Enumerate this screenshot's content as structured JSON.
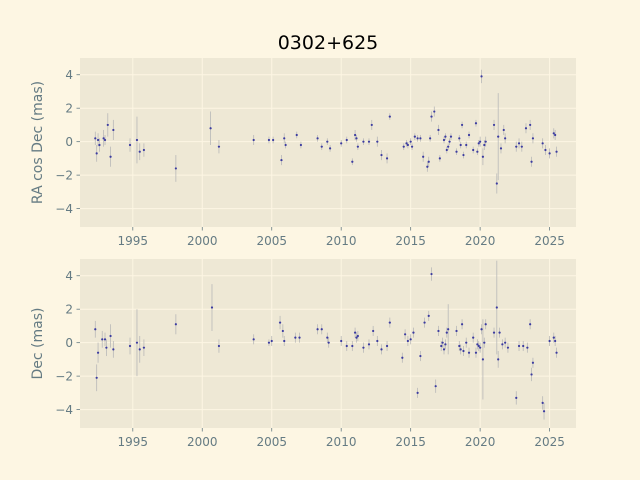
{
  "colors": {
    "figure_bg": "#fdf6e3",
    "axes_bg": "#eee8d5",
    "grid": "#fdf6e3",
    "tick_text": "#657b83",
    "points": "#3b3ba0",
    "errorbars": "#b8b8b8",
    "title": "#000000"
  },
  "chart_data": [
    {
      "type": "scatter",
      "title": "0302+625",
      "xlabel": "",
      "ylabel": "RA cos Dec (mas)",
      "xlim": [
        1991.2,
        2026.9
      ],
      "ylim": [
        -5.1,
        5.0
      ],
      "xticks": [
        1995,
        2000,
        2005,
        2010,
        2015,
        2020,
        2025
      ],
      "yticks": [
        -4,
        -2,
        0,
        2,
        4
      ],
      "grid": true,
      "series": [
        {
          "points": [
            [
              1992.3,
              0.2,
              0.4
            ],
            [
              1992.4,
              -0.7,
              0.5
            ],
            [
              1992.5,
              0.1,
              0.4
            ],
            [
              1992.6,
              -0.2,
              0.4
            ],
            [
              1992.9,
              0.2,
              0.5
            ],
            [
              1993.0,
              0.1,
              0.3
            ],
            [
              1993.2,
              1.0,
              0.7
            ],
            [
              1993.4,
              -0.9,
              0.6
            ],
            [
              1993.6,
              0.7,
              0.6
            ],
            [
              1994.8,
              -0.2,
              0.4
            ],
            [
              1995.3,
              0.1,
              1.4
            ],
            [
              1995.5,
              -0.6,
              0.5
            ],
            [
              1995.8,
              -0.5,
              0.4
            ],
            [
              1998.1,
              -1.6,
              0.8
            ],
            [
              2000.6,
              0.8,
              1.0
            ],
            [
              2001.2,
              -0.3,
              0.4
            ],
            [
              2003.7,
              0.1,
              0.3
            ],
            [
              2004.8,
              0.1,
              0.2
            ],
            [
              2005.1,
              0.1,
              0.2
            ],
            [
              2005.7,
              -1.1,
              0.3
            ],
            [
              2005.9,
              0.2,
              0.3
            ],
            [
              2006.0,
              -0.2,
              0.2
            ],
            [
              2006.8,
              0.4,
              0.2
            ],
            [
              2007.1,
              -0.2,
              0.2
            ],
            [
              2008.3,
              0.2,
              0.2
            ],
            [
              2008.6,
              -0.3,
              0.2
            ],
            [
              2009.0,
              0.0,
              0.2
            ],
            [
              2009.2,
              -0.4,
              0.2
            ],
            [
              2010.0,
              -0.1,
              0.2
            ],
            [
              2010.4,
              0.1,
              0.2
            ],
            [
              2010.8,
              -1.2,
              0.2
            ],
            [
              2011.0,
              0.4,
              0.3
            ],
            [
              2011.1,
              0.2,
              0.2
            ],
            [
              2011.2,
              -0.3,
              0.2
            ],
            [
              2011.6,
              0.0,
              0.2
            ],
            [
              2012.0,
              0.0,
              0.2
            ],
            [
              2012.2,
              1.0,
              0.3
            ],
            [
              2012.6,
              0.0,
              0.3
            ],
            [
              2012.9,
              -0.8,
              0.3
            ],
            [
              2013.3,
              -1.0,
              0.3
            ],
            [
              2013.5,
              1.5,
              0.2
            ],
            [
              2014.5,
              -0.3,
              0.2
            ],
            [
              2014.7,
              -0.1,
              0.2
            ],
            [
              2014.8,
              -0.2,
              0.2
            ],
            [
              2015.0,
              0.0,
              0.2
            ],
            [
              2015.1,
              -0.3,
              0.2
            ],
            [
              2015.3,
              0.3,
              0.2
            ],
            [
              2015.5,
              0.2,
              0.2
            ],
            [
              2015.7,
              0.2,
              0.2
            ],
            [
              2015.9,
              -0.9,
              0.3
            ],
            [
              2016.2,
              -1.5,
              0.3
            ],
            [
              2016.3,
              -1.2,
              0.3
            ],
            [
              2016.4,
              0.2,
              0.2
            ],
            [
              2016.5,
              1.5,
              0.3
            ],
            [
              2016.7,
              1.8,
              0.3
            ],
            [
              2017.0,
              0.7,
              0.3
            ],
            [
              2017.1,
              -1.0,
              0.2
            ],
            [
              2017.4,
              0.1,
              0.2
            ],
            [
              2017.5,
              0.3,
              0.2
            ],
            [
              2017.6,
              -0.5,
              0.2
            ],
            [
              2017.7,
              -0.3,
              0.2
            ],
            [
              2017.8,
              0.0,
              0.2
            ],
            [
              2017.9,
              0.3,
              0.2
            ],
            [
              2018.3,
              -0.6,
              0.2
            ],
            [
              2018.5,
              0.2,
              0.2
            ],
            [
              2018.6,
              -0.2,
              0.2
            ],
            [
              2018.7,
              1.0,
              0.2
            ],
            [
              2018.8,
              -0.8,
              0.2
            ],
            [
              2019.0,
              -0.2,
              0.2
            ],
            [
              2019.2,
              0.4,
              0.2
            ],
            [
              2019.5,
              -0.5,
              0.2
            ],
            [
              2019.7,
              1.1,
              0.2
            ],
            [
              2019.8,
              -0.6,
              0.2
            ],
            [
              2019.9,
              -0.1,
              0.2
            ],
            [
              2020.0,
              0.0,
              0.3
            ],
            [
              2020.1,
              3.9,
              0.4
            ],
            [
              2020.2,
              -0.9,
              0.5
            ],
            [
              2020.3,
              -0.2,
              0.3
            ],
            [
              2020.4,
              0.0,
              0.3
            ],
            [
              2021.0,
              1.0,
              0.3
            ],
            [
              2021.2,
              -2.5,
              0.6
            ],
            [
              2021.3,
              0.3,
              2.6
            ],
            [
              2021.5,
              -0.4,
              0.3
            ],
            [
              2021.7,
              0.7,
              0.3
            ],
            [
              2021.8,
              0.2,
              0.3
            ],
            [
              2022.6,
              -0.3,
              0.3
            ],
            [
              2022.8,
              -0.1,
              0.3
            ],
            [
              2023.0,
              -0.3,
              0.3
            ],
            [
              2023.3,
              0.8,
              0.3
            ],
            [
              2023.6,
              1.0,
              0.3
            ],
            [
              2023.7,
              -1.2,
              0.3
            ],
            [
              2023.8,
              0.2,
              0.3
            ],
            [
              2024.5,
              -0.1,
              0.3
            ],
            [
              2024.7,
              -0.5,
              0.3
            ],
            [
              2025.0,
              -0.7,
              0.3
            ],
            [
              2025.3,
              0.5,
              0.3
            ],
            [
              2025.4,
              0.4,
              0.3
            ],
            [
              2025.5,
              -0.6,
              0.3
            ]
          ]
        }
      ]
    },
    {
      "type": "scatter",
      "title": "",
      "xlabel": "",
      "ylabel": "Dec (mas)",
      "xlim": [
        1991.2,
        2026.9
      ],
      "ylim": [
        -5.1,
        5.0
      ],
      "xticks": [
        1995,
        2000,
        2005,
        2010,
        2015,
        2020,
        2025
      ],
      "yticks": [
        -4,
        -2,
        0,
        2,
        4
      ],
      "grid": true,
      "series": [
        {
          "points": [
            [
              1992.3,
              0.8,
              0.5
            ],
            [
              1992.4,
              -2.1,
              0.8
            ],
            [
              1992.5,
              -0.6,
              0.6
            ],
            [
              1992.8,
              0.2,
              0.5
            ],
            [
              1993.0,
              0.2,
              0.4
            ],
            [
              1993.1,
              -0.3,
              0.5
            ],
            [
              1993.4,
              0.4,
              0.7
            ],
            [
              1993.6,
              -0.4,
              0.5
            ],
            [
              1994.8,
              -0.2,
              0.5
            ],
            [
              1995.3,
              0.0,
              2.0
            ],
            [
              1995.5,
              -0.4,
              0.8
            ],
            [
              1995.8,
              -0.3,
              0.5
            ],
            [
              1998.1,
              1.1,
              0.6
            ],
            [
              2000.7,
              2.1,
              1.4
            ],
            [
              2001.2,
              -0.2,
              0.4
            ],
            [
              2003.7,
              0.2,
              0.3
            ],
            [
              2004.8,
              0.0,
              0.2
            ],
            [
              2005.0,
              0.1,
              0.3
            ],
            [
              2005.6,
              1.2,
              0.4
            ],
            [
              2005.8,
              0.7,
              0.4
            ],
            [
              2005.9,
              0.1,
              0.3
            ],
            [
              2006.7,
              0.3,
              0.3
            ],
            [
              2007.0,
              0.3,
              0.3
            ],
            [
              2008.3,
              0.8,
              0.3
            ],
            [
              2008.6,
              0.8,
              0.3
            ],
            [
              2009.0,
              0.3,
              0.3
            ],
            [
              2009.1,
              0.0,
              0.3
            ],
            [
              2010.0,
              0.1,
              0.3
            ],
            [
              2010.4,
              -0.2,
              0.3
            ],
            [
              2010.8,
              -0.2,
              0.3
            ],
            [
              2011.0,
              0.6,
              0.3
            ],
            [
              2011.1,
              0.3,
              0.3
            ],
            [
              2011.2,
              0.4,
              0.3
            ],
            [
              2011.6,
              -0.3,
              0.3
            ],
            [
              2012.0,
              -0.1,
              0.3
            ],
            [
              2012.3,
              0.7,
              0.3
            ],
            [
              2012.6,
              0.1,
              0.3
            ],
            [
              2012.9,
              -0.4,
              0.3
            ],
            [
              2013.3,
              -0.2,
              0.3
            ],
            [
              2013.5,
              1.2,
              0.3
            ],
            [
              2014.4,
              -0.9,
              0.3
            ],
            [
              2014.6,
              0.5,
              0.3
            ],
            [
              2014.8,
              0.1,
              0.3
            ],
            [
              2015.0,
              0.2,
              0.3
            ],
            [
              2015.2,
              0.6,
              0.3
            ],
            [
              2015.5,
              -3.0,
              0.3
            ],
            [
              2015.7,
              -0.8,
              0.3
            ],
            [
              2016.0,
              1.2,
              0.3
            ],
            [
              2016.3,
              1.6,
              0.3
            ],
            [
              2016.5,
              4.1,
              0.4
            ],
            [
              2016.8,
              -2.6,
              0.4
            ],
            [
              2017.0,
              0.7,
              0.3
            ],
            [
              2017.2,
              -0.2,
              0.3
            ],
            [
              2017.3,
              0.0,
              0.3
            ],
            [
              2017.4,
              -0.4,
              0.3
            ],
            [
              2017.5,
              -0.1,
              0.3
            ],
            [
              2017.6,
              0.6,
              0.3
            ],
            [
              2017.7,
              0.8,
              1.5
            ],
            [
              2018.3,
              0.7,
              0.3
            ],
            [
              2018.5,
              -0.2,
              0.3
            ],
            [
              2018.6,
              -0.4,
              0.3
            ],
            [
              2018.7,
              1.1,
              0.3
            ],
            [
              2018.8,
              -0.5,
              0.3
            ],
            [
              2019.0,
              0.0,
              0.3
            ],
            [
              2019.2,
              -0.6,
              0.3
            ],
            [
              2019.5,
              0.3,
              0.3
            ],
            [
              2019.7,
              -0.6,
              0.3
            ],
            [
              2019.8,
              -0.1,
              0.3
            ],
            [
              2019.9,
              -0.2,
              0.3
            ],
            [
              2020.0,
              -0.3,
              0.3
            ],
            [
              2020.1,
              0.8,
              0.3
            ],
            [
              2020.2,
              -1.0,
              2.4
            ],
            [
              2020.3,
              0.0,
              0.3
            ],
            [
              2020.4,
              1.1,
              0.3
            ],
            [
              2021.0,
              0.6,
              0.3
            ],
            [
              2021.2,
              2.1,
              2.8
            ],
            [
              2021.3,
              -1.0,
              0.5
            ],
            [
              2021.4,
              0.6,
              0.3
            ],
            [
              2021.6,
              -0.1,
              0.3
            ],
            [
              2021.8,
              0.0,
              0.3
            ],
            [
              2022.0,
              -0.3,
              0.3
            ],
            [
              2022.6,
              -3.3,
              0.4
            ],
            [
              2022.8,
              -0.2,
              0.3
            ],
            [
              2023.1,
              -0.2,
              0.3
            ],
            [
              2023.4,
              -0.3,
              0.3
            ],
            [
              2023.6,
              1.1,
              0.3
            ],
            [
              2023.7,
              -1.9,
              0.4
            ],
            [
              2023.8,
              -1.2,
              0.3
            ],
            [
              2024.5,
              -3.6,
              0.4
            ],
            [
              2024.6,
              -4.1,
              0.5
            ],
            [
              2025.0,
              0.1,
              0.3
            ],
            [
              2025.3,
              0.3,
              0.3
            ],
            [
              2025.4,
              0.1,
              0.3
            ],
            [
              2025.5,
              -0.6,
              0.3
            ]
          ]
        }
      ]
    }
  ]
}
